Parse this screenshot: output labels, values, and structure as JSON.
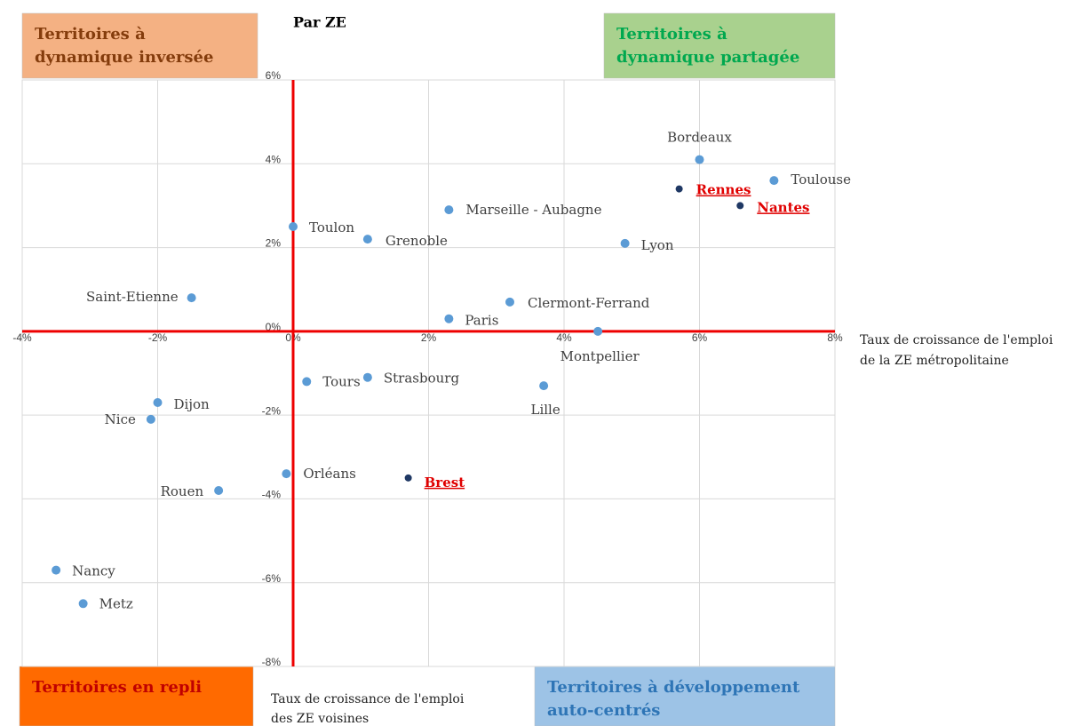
{
  "chart_data": {
    "type": "scatter",
    "title": "Par ZE",
    "x_label": [
      "Taux de croissance de l'emploi",
      "de la ZE métropolitaine"
    ],
    "y_label": [
      "Taux de croissance de l'emploi",
      "des ZE voisines"
    ],
    "quadrants": [
      {
        "lines": [
          "Territoires à",
          "dynamique inversée"
        ],
        "color": "#f4b183",
        "text_color": "#843c0c"
      },
      {
        "lines": [
          "Territoires à",
          "dynamique partagée"
        ],
        "color": "#a9d18e",
        "text_color": "#00a84f"
      },
      {
        "lines": [
          "Territoires en repli"
        ],
        "color": "#ff6a00",
        "text_color": "#c00000"
      },
      {
        "lines": [
          "Territoires à développement",
          "auto-centrés"
        ],
        "color": "#9dc3e6",
        "text_color": "#2e75b6"
      }
    ],
    "xlim": [
      -4,
      8
    ],
    "ylim": [
      -8,
      6
    ],
    "xticks": [
      {
        "value": -4,
        "label": "-4%"
      },
      {
        "value": -2,
        "label": "-2%"
      },
      {
        "value": 0,
        "label": "0%"
      },
      {
        "value": 2,
        "label": "2%"
      },
      {
        "value": 4,
        "label": "4%"
      },
      {
        "value": 6,
        "label": "6%"
      },
      {
        "value": 8,
        "label": "8%"
      }
    ],
    "yticks": [
      {
        "value": -8,
        "label": "-8%"
      },
      {
        "value": -6,
        "label": "-6%"
      },
      {
        "value": -4,
        "label": "-4%"
      },
      {
        "value": -2,
        "label": "-2%"
      },
      {
        "value": 0,
        "label": "0%"
      },
      {
        "value": 2,
        "label": "2%"
      },
      {
        "value": 4,
        "label": "4%"
      },
      {
        "value": 6,
        "label": "6%"
      }
    ],
    "grid": true,
    "color": "#5b9bd5",
    "highlight_color": "#1f3864",
    "highlight_label_color": "#e00000",
    "axis_color": "#ee0000",
    "points": [
      {
        "label": "Bordeaux",
        "x": 6.0,
        "y": 4.1,
        "highlight": false
      },
      {
        "label": "Toulouse",
        "x": 7.1,
        "y": 3.6,
        "highlight": false
      },
      {
        "label": "Rennes",
        "x": 5.7,
        "y": 3.4,
        "highlight": true
      },
      {
        "label": "Nantes",
        "x": 6.6,
        "y": 3.0,
        "highlight": true
      },
      {
        "label": "Marseille - Aubagne",
        "x": 2.3,
        "y": 2.9,
        "highlight": false
      },
      {
        "label": "Lyon",
        "x": 4.9,
        "y": 2.1,
        "highlight": false
      },
      {
        "label": "Toulon",
        "x": 0.0,
        "y": 2.5,
        "highlight": false
      },
      {
        "label": "Grenoble",
        "x": 1.1,
        "y": 2.2,
        "highlight": false
      },
      {
        "label": "Saint-Etienne",
        "x": -1.5,
        "y": 0.8,
        "highlight": false
      },
      {
        "label": "Clermont-Ferrand",
        "x": 3.2,
        "y": 0.7,
        "highlight": false
      },
      {
        "label": "Paris",
        "x": 2.3,
        "y": 0.3,
        "highlight": false
      },
      {
        "label": "Montpellier",
        "x": 4.5,
        "y": 0.0,
        "highlight": false
      },
      {
        "label": "Tours",
        "x": 0.2,
        "y": -1.2,
        "highlight": false
      },
      {
        "label": "Strasbourg",
        "x": 1.1,
        "y": -1.1,
        "highlight": false
      },
      {
        "label": "Lille",
        "x": 3.7,
        "y": -1.3,
        "highlight": false
      },
      {
        "label": "Dijon",
        "x": -2.0,
        "y": -1.7,
        "highlight": false
      },
      {
        "label": "Nice",
        "x": -2.1,
        "y": -2.1,
        "highlight": false
      },
      {
        "label": "Orléans",
        "x": -0.1,
        "y": -3.4,
        "highlight": false
      },
      {
        "label": "Brest",
        "x": 1.7,
        "y": -3.5,
        "highlight": true
      },
      {
        "label": "Rouen",
        "x": -1.1,
        "y": -3.8,
        "highlight": false
      },
      {
        "label": "Nancy",
        "x": -3.5,
        "y": -5.7,
        "highlight": false
      },
      {
        "label": "Metz",
        "x": -3.1,
        "y": -6.5,
        "highlight": false
      }
    ]
  }
}
